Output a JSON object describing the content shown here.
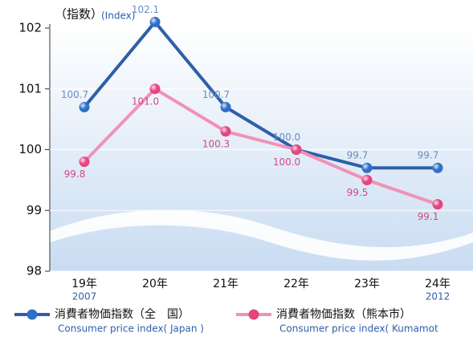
{
  "chart_data": {
    "type": "line",
    "y_label": "（指数）",
    "y_label_en": "(Index)",
    "categories": [
      "19年",
      "20年",
      "21年",
      "22年",
      "23年",
      "24年"
    ],
    "category_years": [
      "2007",
      null,
      null,
      null,
      null,
      "2012"
    ],
    "ylim": [
      98,
      102
    ],
    "yticks": [
      98,
      99,
      100,
      101,
      102
    ],
    "series": [
      {
        "name": "消費者物価指数（全　国）",
        "name_en": "Consumer price index( Japan )",
        "color": "#2e5fa8",
        "marker_color": "#2f6fc8",
        "label_color": "#6a8cc0",
        "label_side": "above",
        "values": [
          100.7,
          102.1,
          100.7,
          100.0,
          99.7,
          99.7
        ],
        "value_labels": [
          "100.7",
          "102.1",
          "100.7",
          "100.0",
          "99.7",
          "99.7"
        ]
      },
      {
        "name": "消費者物価指数（熊本市）",
        "name_en": "Consumer price index( Kumamot",
        "color": "#f291b8",
        "marker_color": "#e4457f",
        "label_color": "#d04a80",
        "label_side": "below",
        "values": [
          99.8,
          101.0,
          100.3,
          100.0,
          99.5,
          99.1
        ],
        "value_labels": [
          "99.8",
          "101.0",
          "100.3",
          "100.0",
          "99.5",
          "99.1"
        ]
      }
    ]
  }
}
